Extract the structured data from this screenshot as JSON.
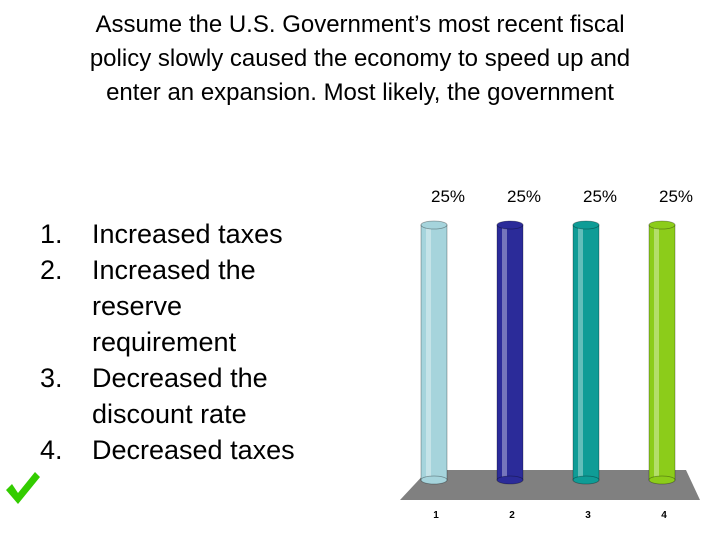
{
  "question": {
    "lines": [
      "Assume the U.S. Government’s most recent fiscal",
      "policy slowly caused the economy to speed up and",
      "enter an expansion. Most likely, the government"
    ]
  },
  "answers": [
    {
      "number": "1.",
      "lines": [
        "Increased taxes"
      ]
    },
    {
      "number": "2.",
      "lines": [
        "Increased the",
        "reserve",
        "requirement"
      ]
    },
    {
      "number": "3.",
      "lines": [
        "Decreased the",
        "discount rate"
      ]
    },
    {
      "number": "4.",
      "lines": [
        "Decreased taxes"
      ],
      "correct": true
    }
  ],
  "correct_mark": {
    "icon": "checkmark-icon",
    "color": "#33cc00"
  },
  "chart_data": {
    "type": "bar",
    "categories": [
      "1",
      "2",
      "3",
      "4"
    ],
    "values": [
      25,
      25,
      25,
      25
    ],
    "data_labels": [
      "25%",
      "25%",
      "25%",
      "25%"
    ],
    "ylim": [
      0,
      100
    ],
    "colors": [
      "#a6d4dc",
      "#2b2b99",
      "#0f9c96",
      "#8ccc1a"
    ],
    "floor_color": "#808080",
    "grid": false
  }
}
